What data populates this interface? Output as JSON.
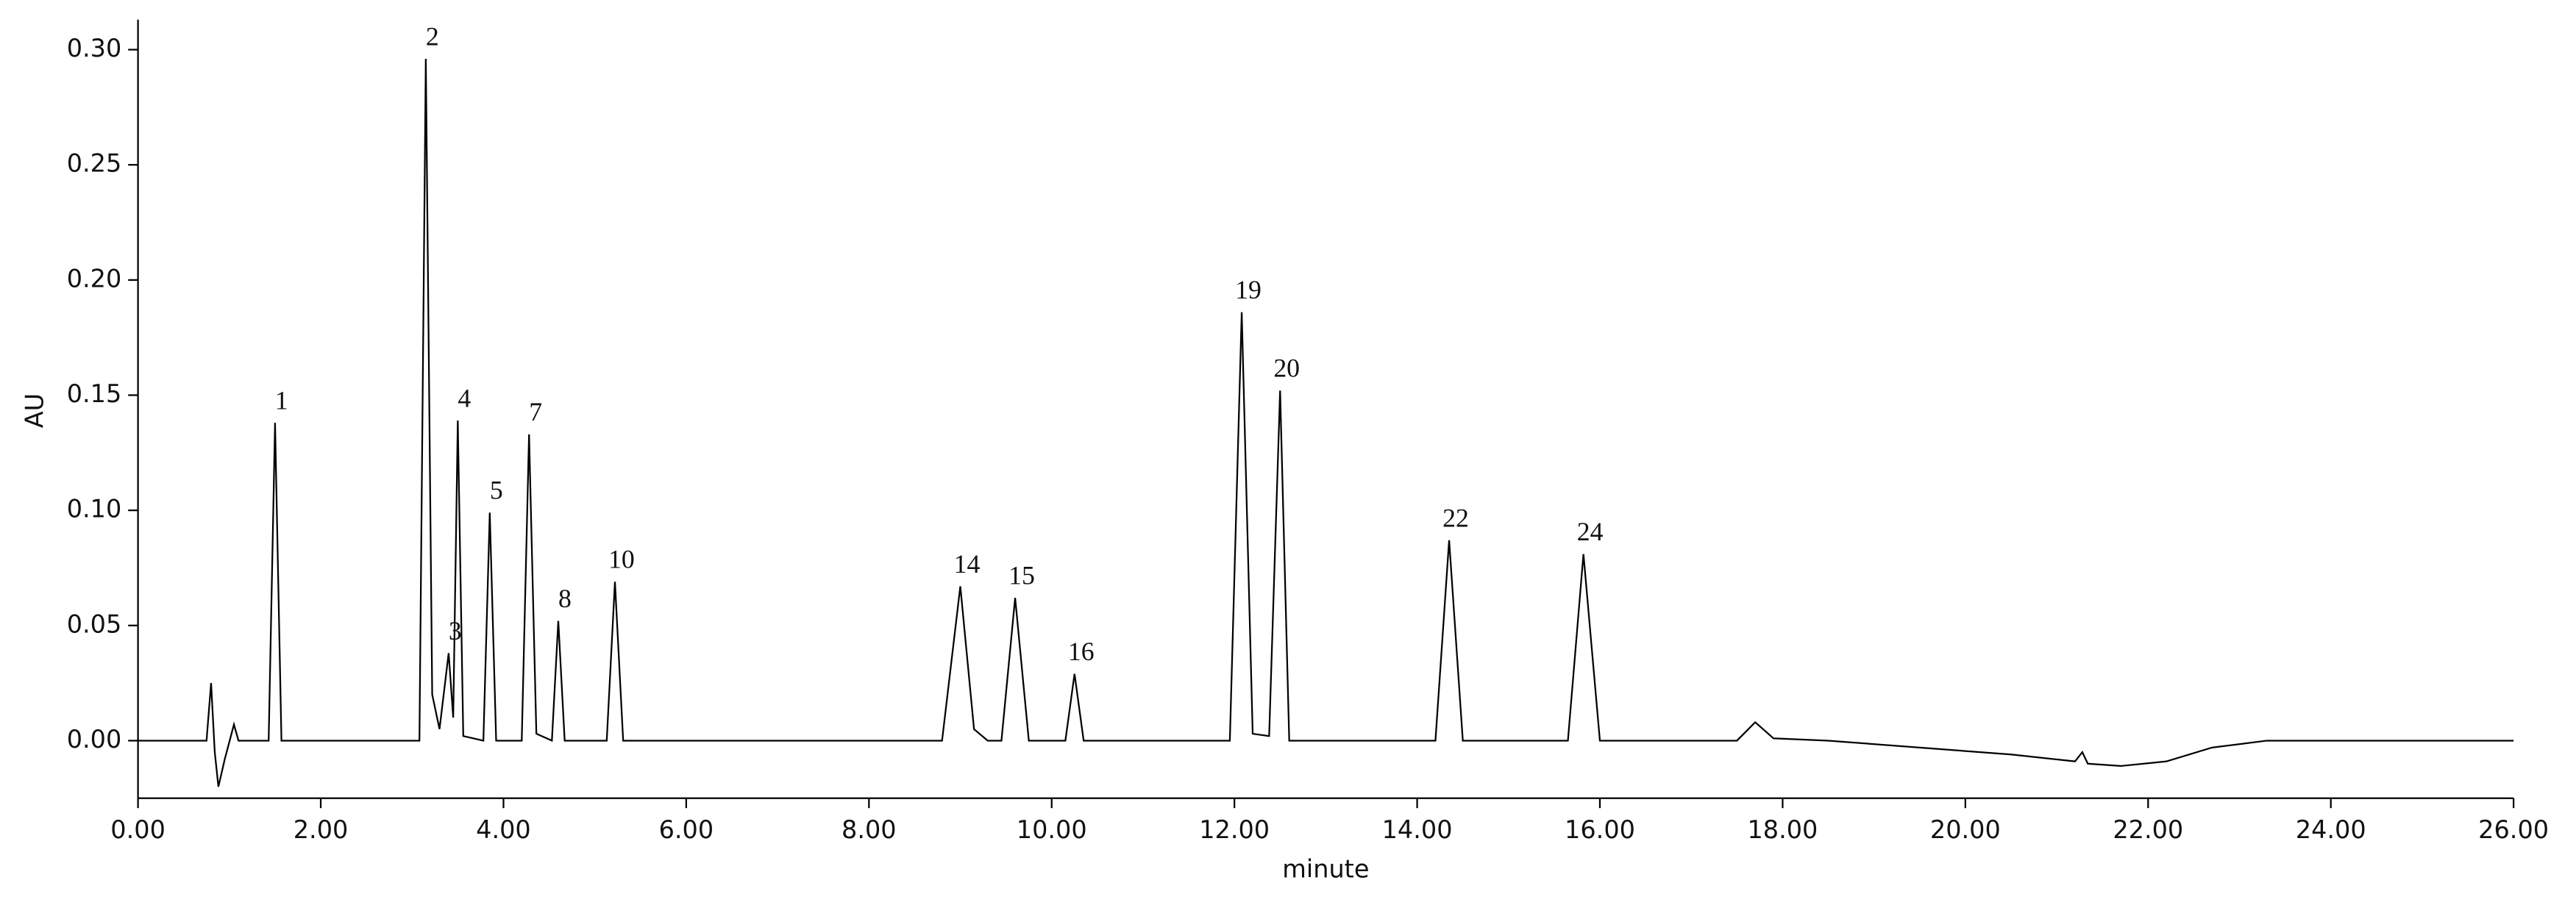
{
  "chart_data": {
    "type": "line",
    "color": "#000000",
    "xlabel": "minute",
    "ylabel": "AU",
    "xlim": [
      0,
      26
    ],
    "ylim": [
      -0.025,
      0.313
    ],
    "xticks": [
      {
        "value": 0,
        "label": "0.00"
      },
      {
        "value": 2,
        "label": "2.00"
      },
      {
        "value": 4,
        "label": "4.00"
      },
      {
        "value": 6,
        "label": "6.00"
      },
      {
        "value": 8,
        "label": "8.00"
      },
      {
        "value": 10,
        "label": "10.00"
      },
      {
        "value": 12,
        "label": "12.00"
      },
      {
        "value": 14,
        "label": "14.00"
      },
      {
        "value": 16,
        "label": "16.00"
      },
      {
        "value": 18,
        "label": "18.00"
      },
      {
        "value": 20,
        "label": "20.00"
      },
      {
        "value": 22,
        "label": "22.00"
      },
      {
        "value": 24,
        "label": "24.00"
      },
      {
        "value": 26,
        "label": "26.00"
      }
    ],
    "yticks": [
      {
        "value": 0,
        "label": "0.00"
      },
      {
        "value": 0.05,
        "label": "0.05"
      },
      {
        "value": 0.1,
        "label": "0.10"
      },
      {
        "value": 0.15,
        "label": "0.15"
      },
      {
        "value": 0.2,
        "label": "0.20"
      },
      {
        "value": 0.25,
        "label": "0.25"
      },
      {
        "value": 0.3,
        "label": "0.30"
      }
    ],
    "x": [
      0,
      0.75,
      0.8,
      0.84,
      0.88,
      0.95,
      1.05,
      1.1,
      1.43,
      1.5,
      1.57,
      3.08,
      3.15,
      3.22,
      3.3,
      3.4,
      3.45,
      3.5,
      3.56,
      3.78,
      3.85,
      3.92,
      4.2,
      4.28,
      4.36,
      4.53,
      4.6,
      4.67,
      5.13,
      5.22,
      5.31,
      8.8,
      9.0,
      9.15,
      9.3,
      9.45,
      9.6,
      9.75,
      10.15,
      10.25,
      10.35,
      11.95,
      12.08,
      12.2,
      12.38,
      12.5,
      12.6,
      14.2,
      14.35,
      14.5,
      15.65,
      15.82,
      16.0,
      17.5,
      17.7,
      17.9,
      18.5,
      19.5,
      20.5,
      21.2,
      21.28,
      21.34,
      21.7,
      22.2,
      22.7,
      23.3,
      26
    ],
    "values": [
      0,
      0,
      0.025,
      -0.005,
      -0.02,
      -0.008,
      0.007,
      0,
      0,
      0.138,
      0,
      0,
      0.296,
      0.02,
      0.005,
      0.038,
      0.01,
      0.139,
      0.002,
      0,
      0.099,
      0,
      0,
      0.133,
      0.003,
      0,
      0.052,
      0,
      0,
      0.069,
      0,
      0,
      0.067,
      0.005,
      0,
      0,
      0.062,
      0,
      0,
      0.029,
      0,
      0,
      0.186,
      0.003,
      0.002,
      0.152,
      0,
      0,
      0.087,
      0,
      0,
      0.081,
      0,
      0,
      0.008,
      0.001,
      0,
      -0.003,
      -0.006,
      -0.009,
      -0.005,
      -0.01,
      -0.011,
      -0.009,
      -0.003,
      0,
      0
    ],
    "annotations": [
      {
        "text": "1",
        "x": 1.5,
        "y": 0.138
      },
      {
        "text": "2",
        "x": 3.15,
        "y": 0.296
      },
      {
        "text": "3",
        "x": 3.4,
        "y": 0.038
      },
      {
        "text": "4",
        "x": 3.5,
        "y": 0.139
      },
      {
        "text": "5",
        "x": 3.85,
        "y": 0.099
      },
      {
        "text": "7",
        "x": 4.28,
        "y": 0.133
      },
      {
        "text": "8",
        "x": 4.6,
        "y": 0.052
      },
      {
        "text": "10",
        "x": 5.22,
        "y": 0.069
      },
      {
        "text": "14",
        "x": 9.0,
        "y": 0.067
      },
      {
        "text": "15",
        "x": 9.6,
        "y": 0.062
      },
      {
        "text": "16",
        "x": 10.25,
        "y": 0.029
      },
      {
        "text": "19",
        "x": 12.08,
        "y": 0.186
      },
      {
        "text": "20",
        "x": 12.5,
        "y": 0.152
      },
      {
        "text": "22",
        "x": 14.35,
        "y": 0.087
      },
      {
        "text": "24",
        "x": 15.82,
        "y": 0.081
      }
    ]
  }
}
